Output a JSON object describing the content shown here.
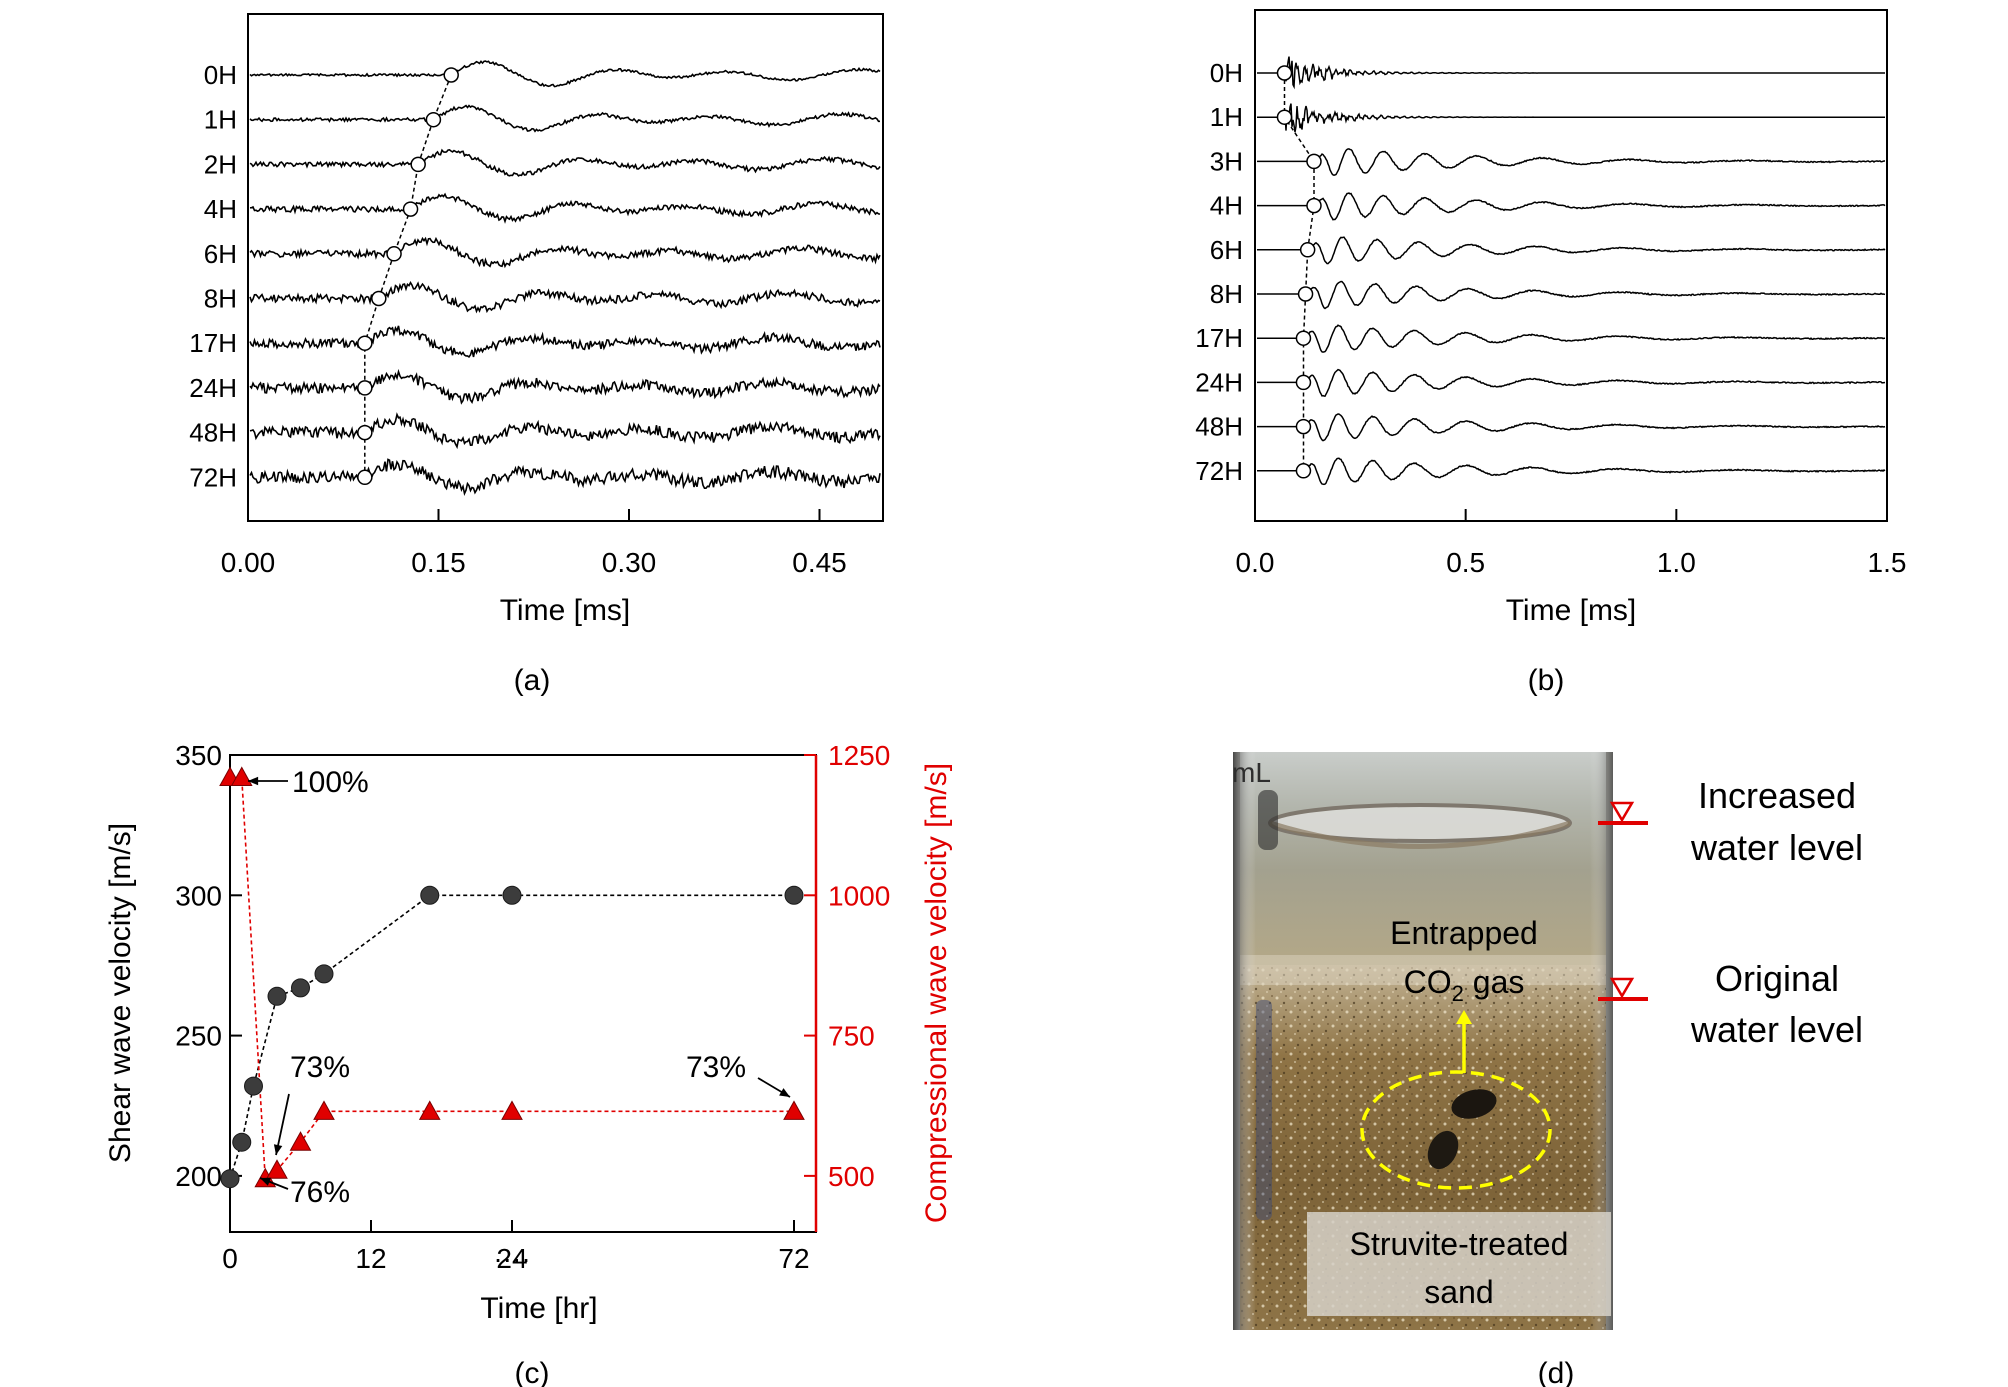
{
  "colors": {
    "primary_axis": "#000000",
    "secondary_axis": "#e00000",
    "shear_marker": "#3c3c3c",
    "compression_marker": "#e00000",
    "bubble_outline": "#ffff00",
    "water_level": "#e00000"
  },
  "panel_labels": [
    "(a)",
    "(b)",
    "(c)",
    "(d)"
  ],
  "chart_data": [
    {
      "id": "a",
      "type": "line",
      "xlabel": "Time [ms]",
      "x_ticks": [
        "0.00",
        "0.15",
        "0.30",
        "0.45"
      ],
      "xlim": [
        0.0,
        0.5
      ],
      "series_labels": [
        "0H",
        "1H",
        "2H",
        "4H",
        "6H",
        "8H",
        "17H",
        "24H",
        "48H",
        "72H"
      ],
      "first_arrival_ms": [
        0.16,
        0.146,
        0.134,
        0.128,
        0.115,
        0.103,
        0.092,
        0.092,
        0.092,
        0.092
      ],
      "dominant_period_ms": 0.1
    },
    {
      "id": "b",
      "type": "line",
      "xlabel": "Time [ms]",
      "x_ticks": [
        "0.0",
        "0.5",
        "1.0",
        "1.5"
      ],
      "xlim": [
        0.0,
        1.5
      ],
      "series_labels": [
        "0H",
        "1H",
        "3H",
        "4H",
        "6H",
        "8H",
        "17H",
        "24H",
        "48H",
        "72H"
      ],
      "first_arrival_ms": [
        0.07,
        0.07,
        0.14,
        0.14,
        0.125,
        0.12,
        0.115,
        0.115,
        0.115,
        0.115
      ]
    },
    {
      "id": "c",
      "type": "scatter",
      "xlabel": "Time [hr]",
      "x_ticks": [
        "0",
        "12",
        "24",
        "····",
        "72"
      ],
      "ylabel": "Shear wave velocity [m/s]",
      "y_ticks": [
        "200",
        "250",
        "300",
        "350"
      ],
      "ylim": [
        180,
        350
      ],
      "y2label": "Compressional wave velocity [m/s]",
      "y2_ticks": [
        "500",
        "750",
        "1000",
        "1250"
      ],
      "y2lim": [
        400,
        1250
      ],
      "series": [
        {
          "axis": "left",
          "marker": "circle",
          "x": [
            0,
            1,
            2,
            4,
            6,
            8,
            17,
            24,
            72
          ],
          "y": [
            199,
            212,
            232,
            264,
            267,
            272,
            300,
            300,
            300
          ]
        },
        {
          "axis": "right",
          "marker": "triangle",
          "x": [
            0,
            1,
            3,
            4,
            6,
            8,
            17,
            24,
            72
          ],
          "y": [
            1210,
            1210,
            495,
            510,
            560,
            615,
            615,
            615,
            615
          ]
        }
      ],
      "annotations": [
        "100%",
        "73%",
        "76%",
        "73%"
      ]
    }
  ],
  "photo": {
    "labels": {
      "increased": [
        "Increased",
        "water level"
      ],
      "original": [
        "Original",
        "water level"
      ],
      "gas": [
        "Entrapped",
        "CO",
        "2",
        " gas"
      ],
      "sand": [
        "Struvite-treated",
        "sand"
      ],
      "tube_mark": "mL"
    }
  }
}
